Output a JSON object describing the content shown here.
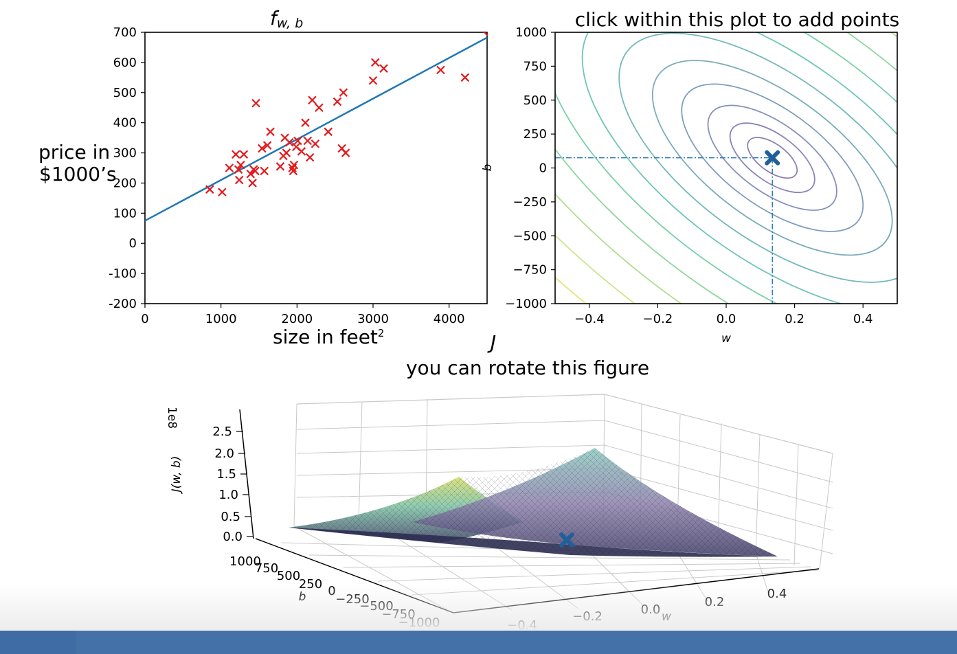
{
  "chart_data": [
    {
      "type": "scatter",
      "title": "f",
      "title_sub": "w, b",
      "xlabel": "size in feet",
      "xlabel_sup": "2",
      "ylabel": [
        "price in",
        "$1000’s"
      ],
      "xlim": [
        0,
        4500
      ],
      "ylim": [
        -200,
        700
      ],
      "xticks": [
        "0",
        "1000",
        "2000",
        "3000",
        "4000"
      ],
      "yticks": [
        "700",
        "600",
        "500",
        "400",
        "300",
        "200",
        "100",
        "0",
        "-100",
        "-200"
      ],
      "points": [
        [
          852,
          179
        ],
        [
          1015,
          170
        ],
        [
          1110,
          250
        ],
        [
          1195,
          295
        ],
        [
          1230,
          245
        ],
        [
          1240,
          210
        ],
        [
          1260,
          260
        ],
        [
          1300,
          295
        ],
        [
          1390,
          230
        ],
        [
          1415,
          200
        ],
        [
          1430,
          245
        ],
        [
          1450,
          240
        ],
        [
          1460,
          465
        ],
        [
          1540,
          315
        ],
        [
          1570,
          240
        ],
        [
          1610,
          325
        ],
        [
          1650,
          370
        ],
        [
          1780,
          255
        ],
        [
          1820,
          290
        ],
        [
          1840,
          350
        ],
        [
          1860,
          300
        ],
        [
          1900,
          335
        ],
        [
          1940,
          250
        ],
        [
          1950,
          240
        ],
        [
          1960,
          260
        ],
        [
          1990,
          320
        ],
        [
          2010,
          340
        ],
        [
          2060,
          305
        ],
        [
          2110,
          400
        ],
        [
          2140,
          340
        ],
        [
          2170,
          285
        ],
        [
          2200,
          475
        ],
        [
          2240,
          330
        ],
        [
          2290,
          450
        ],
        [
          2410,
          370
        ],
        [
          2530,
          470
        ],
        [
          2590,
          315
        ],
        [
          2610,
          500
        ],
        [
          2640,
          300
        ],
        [
          3000,
          540
        ],
        [
          3030,
          600
        ],
        [
          3140,
          580
        ],
        [
          3890,
          575
        ],
        [
          4210,
          550
        ]
      ],
      "line": {
        "w": 0.135,
        "b": 75
      }
    },
    {
      "type": "contour",
      "title": "click within this plot to add points",
      "xlabel": "w",
      "ylabel": "b",
      "xlim": [
        -0.5,
        0.5
      ],
      "ylim": [
        -1000,
        1000
      ],
      "xticks": [
        "−0.4",
        "−0.2",
        "0.0",
        "0.2",
        "0.4"
      ],
      "yticks": [
        "1000",
        "750",
        "500",
        "250",
        "0",
        "−250",
        "−500",
        "−750",
        "−1000"
      ],
      "marker": {
        "w": 0.135,
        "b": 75
      }
    },
    {
      "type": "surface",
      "title": "J",
      "subtitle": "you can rotate this figure",
      "zlabel": "J(w, b)",
      "zscale": "1e8",
      "xlabel": "w",
      "ylabel": "b",
      "zticks": [
        "2.5",
        "2.0",
        "1.5",
        "1.0",
        "0.5",
        "0.0"
      ],
      "xticks": [
        "−0.4",
        "−0.2",
        "0.0",
        "0.2",
        "0.4"
      ],
      "yticks": [
        "1000",
        "750",
        "500",
        "250",
        "0",
        "−250",
        "−500",
        "−750",
        "−1000"
      ]
    }
  ],
  "colors": {
    "points": "#e41a1c",
    "line": "#1f77b4",
    "marker": "#1f5f9a",
    "crosshair": "#1f77b4",
    "taskbar": "#4472a8"
  }
}
